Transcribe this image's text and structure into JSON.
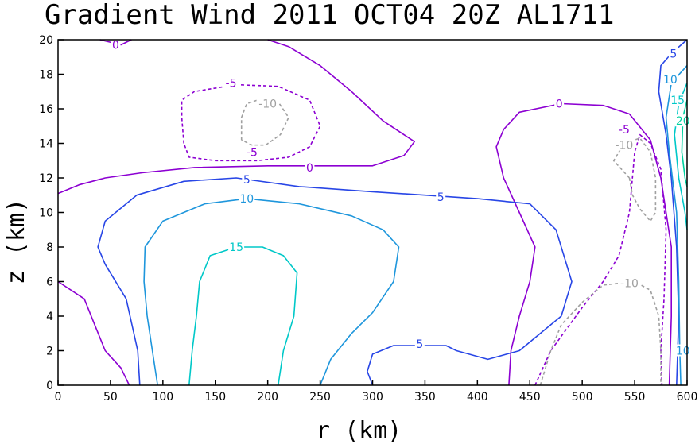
{
  "chart_data": {
    "type": "contour",
    "title": "Gradient Wind 2011 OCT04 20Z  AL1711",
    "xlabel": "r (km)",
    "ylabel": "z (km)",
    "xlim": [
      0,
      600
    ],
    "ylim": [
      0,
      20
    ],
    "xticks": [
      0,
      50,
      100,
      150,
      200,
      250,
      300,
      350,
      400,
      450,
      500,
      550,
      600
    ],
    "yticks": [
      0,
      2,
      4,
      6,
      8,
      10,
      12,
      14,
      16,
      18,
      20
    ],
    "grid": false,
    "colors": {
      "-10": "#a0a0a0",
      "-5": "#8c00d2",
      "0": "#8c00d2",
      "5": "#2846e6",
      "10": "#1e96dc",
      "15": "#00c8c8",
      "20": "#00d2a0"
    },
    "contours": [
      {
        "level": 0,
        "style": "solid",
        "points": [
          [
            0,
            11.1
          ],
          [
            20,
            11.6
          ],
          [
            45,
            12.0
          ],
          [
            80,
            12.3
          ],
          [
            130,
            12.6
          ],
          [
            200,
            12.7
          ],
          [
            300,
            12.7
          ],
          [
            330,
            13.3
          ],
          [
            340,
            14.1
          ],
          [
            310,
            15.3
          ],
          [
            280,
            17.0
          ],
          [
            250,
            18.5
          ],
          [
            220,
            19.6
          ],
          [
            200,
            20
          ]
        ]
      },
      {
        "level": 0,
        "style": "solid",
        "points": [
          [
            40,
            20
          ],
          [
            60,
            19.7
          ],
          [
            70,
            20
          ]
        ]
      },
      {
        "level": 0,
        "style": "solid",
        "points": [
          [
            0,
            6.0
          ],
          [
            25,
            5.0
          ],
          [
            35,
            3.5
          ],
          [
            45,
            2.0
          ],
          [
            60,
            1.0
          ],
          [
            68,
            0
          ]
        ]
      },
      {
        "level": 0,
        "style": "solid",
        "points": [
          [
            430,
            0
          ],
          [
            432,
            2.0
          ],
          [
            440,
            4.0
          ],
          [
            450,
            6.0
          ],
          [
            455,
            8.0
          ],
          [
            440,
            10.0
          ],
          [
            425,
            12.0
          ],
          [
            418,
            13.8
          ],
          [
            425,
            14.8
          ],
          [
            440,
            15.8
          ],
          [
            480,
            16.3
          ],
          [
            520,
            16.2
          ],
          [
            545,
            15.7
          ],
          [
            565,
            14.2
          ],
          [
            575,
            12.0
          ],
          [
            585,
            8.0
          ],
          [
            585,
            4.0
          ],
          [
            583,
            0
          ]
        ]
      },
      {
        "level": 5,
        "style": "solid",
        "points": [
          [
            600,
            20
          ],
          [
            585,
            19.2
          ],
          [
            575,
            18.5
          ],
          [
            573,
            17.0
          ],
          [
            580,
            14.5
          ],
          [
            585,
            12.0
          ],
          [
            590,
            8.0
          ],
          [
            592,
            4.0
          ],
          [
            590,
            0
          ]
        ]
      },
      {
        "level": 5,
        "style": "solid",
        "points": [
          [
            78,
            0
          ],
          [
            76,
            2.0
          ],
          [
            65,
            5.0
          ],
          [
            45,
            7.0
          ],
          [
            38,
            8.0
          ],
          [
            45,
            9.5
          ],
          [
            75,
            11.0
          ],
          [
            120,
            11.8
          ],
          [
            170,
            12.0
          ],
          [
            230,
            11.5
          ],
          [
            300,
            11.2
          ],
          [
            350,
            11.0
          ],
          [
            400,
            10.8
          ],
          [
            450,
            10.5
          ],
          [
            475,
            9.0
          ],
          [
            490,
            6.0
          ],
          [
            480,
            4.0
          ],
          [
            440,
            2.0
          ],
          [
            410,
            1.5
          ],
          [
            380,
            2.0
          ],
          [
            370,
            2.3
          ],
          [
            320,
            2.3
          ],
          [
            300,
            1.8
          ],
          [
            295,
            0.8
          ],
          [
            300,
            0
          ]
        ]
      },
      {
        "level": 10,
        "style": "solid",
        "points": [
          [
            95,
            0
          ],
          [
            90,
            2.0
          ],
          [
            85,
            4.0
          ],
          [
            82,
            6.0
          ],
          [
            83,
            8.0
          ],
          [
            100,
            9.5
          ],
          [
            140,
            10.5
          ],
          [
            180,
            10.8
          ],
          [
            230,
            10.5
          ],
          [
            280,
            9.8
          ],
          [
            310,
            9.0
          ],
          [
            325,
            8.0
          ],
          [
            320,
            6.0
          ],
          [
            300,
            4.2
          ],
          [
            280,
            3.0
          ],
          [
            260,
            1.5
          ],
          [
            250,
            0
          ]
        ]
      },
      {
        "level": 10,
        "style": "solid",
        "points": [
          [
            600,
            18.5
          ],
          [
            585,
            17.5
          ],
          [
            580,
            15.5
          ],
          [
            583,
            13.5
          ],
          [
            590,
            10.0
          ],
          [
            592,
            6.0
          ],
          [
            593,
            2.0
          ],
          [
            594,
            0
          ]
        ]
      },
      {
        "level": 15,
        "style": "solid",
        "points": [
          [
            125,
            0
          ],
          [
            128,
            2.0
          ],
          [
            132,
            4.0
          ],
          [
            135,
            6.0
          ],
          [
            145,
            7.5
          ],
          [
            170,
            8.0
          ],
          [
            195,
            8.0
          ],
          [
            215,
            7.5
          ],
          [
            228,
            6.5
          ],
          [
            225,
            4.0
          ],
          [
            215,
            2.0
          ],
          [
            210,
            0
          ]
        ]
      },
      {
        "level": 15,
        "style": "solid",
        "points": [
          [
            600,
            17.5
          ],
          [
            592,
            16.3
          ],
          [
            588,
            14.5
          ],
          [
            592,
            12.0
          ],
          [
            598,
            10.0
          ],
          [
            600,
            9.0
          ]
        ]
      },
      {
        "level": 20,
        "style": "solid",
        "points": [
          [
            600,
            16.5
          ],
          [
            596,
            15.5
          ],
          [
            595,
            13.5
          ],
          [
            598,
            12.0
          ],
          [
            600,
            11.5
          ]
        ]
      },
      {
        "level": -5,
        "style": "dashed",
        "points": [
          [
            120,
            14.0
          ],
          [
            118,
            15.5
          ],
          [
            118,
            16.5
          ],
          [
            130,
            17.0
          ],
          [
            170,
            17.4
          ],
          [
            210,
            17.3
          ],
          [
            240,
            16.5
          ],
          [
            250,
            15.0
          ],
          [
            240,
            13.8
          ],
          [
            220,
            13.2
          ],
          [
            190,
            13.0
          ],
          [
            150,
            13.0
          ],
          [
            125,
            13.2
          ],
          [
            120,
            14.0
          ]
        ]
      },
      {
        "level": -5,
        "style": "dashed",
        "points": [
          [
            455,
            0
          ],
          [
            470,
            2.0
          ],
          [
            500,
            4.5
          ],
          [
            520,
            6.0
          ],
          [
            535,
            7.5
          ],
          [
            545,
            10.0
          ],
          [
            550,
            13.5
          ],
          [
            555,
            14.5
          ],
          [
            565,
            14.0
          ],
          [
            575,
            12.5
          ],
          [
            580,
            9.0
          ],
          [
            578,
            5.0
          ],
          [
            575,
            2.0
          ],
          [
            576,
            0
          ]
        ]
      },
      {
        "level": -10,
        "style": "dashed",
        "points": [
          [
            175,
            14.2
          ],
          [
            175,
            15.5
          ],
          [
            180,
            16.3
          ],
          [
            195,
            16.6
          ],
          [
            210,
            16.4
          ],
          [
            220,
            15.5
          ],
          [
            212,
            14.5
          ],
          [
            198,
            13.9
          ],
          [
            185,
            13.9
          ],
          [
            175,
            14.2
          ]
        ]
      },
      {
        "level": -10,
        "style": "dashed",
        "points": [
          [
            545,
            12.0
          ],
          [
            548,
            11.0
          ],
          [
            555,
            10.2
          ],
          [
            565,
            9.5
          ],
          [
            570,
            10.0
          ],
          [
            570,
            12.0
          ],
          [
            565,
            13.5
          ],
          [
            555,
            14.3
          ],
          [
            540,
            14.0
          ],
          [
            530,
            13.0
          ],
          [
            545,
            12.0
          ]
        ]
      },
      {
        "level": -10,
        "style": "dashed",
        "points": [
          [
            460,
            0
          ],
          [
            470,
            2.0
          ],
          [
            480,
            3.5
          ],
          [
            500,
            4.8
          ],
          [
            520,
            5.8
          ],
          [
            550,
            6.0
          ],
          [
            565,
            5.5
          ],
          [
            573,
            4.0
          ],
          [
            575,
            2.0
          ],
          [
            575,
            0
          ]
        ]
      }
    ],
    "contour_labels": [
      {
        "text": "0",
        "x": 55,
        "y": 19.7,
        "level": 0
      },
      {
        "text": "-5",
        "x": 165,
        "y": 17.5,
        "level": -5
      },
      {
        "text": "-10",
        "x": 200,
        "y": 16.3,
        "level": -10
      },
      {
        "text": "-5",
        "x": 185,
        "y": 13.5,
        "level": -5
      },
      {
        "text": "0",
        "x": 240,
        "y": 12.6,
        "level": 0
      },
      {
        "text": "5",
        "x": 180,
        "y": 11.9,
        "level": 5
      },
      {
        "text": "5",
        "x": 365,
        "y": 10.9,
        "level": 5
      },
      {
        "text": "10",
        "x": 180,
        "y": 10.8,
        "level": 10
      },
      {
        "text": "15",
        "x": 170,
        "y": 8.0,
        "level": 15
      },
      {
        "text": "5",
        "x": 345,
        "y": 2.4,
        "level": 5
      },
      {
        "text": "0",
        "x": 478,
        "y": 16.3,
        "level": 0
      },
      {
        "text": "-5",
        "x": 540,
        "y": 14.8,
        "level": -5
      },
      {
        "text": "-10",
        "x": 540,
        "y": 13.9,
        "level": -10
      },
      {
        "text": "-10",
        "x": 545,
        "y": 5.9,
        "level": -10
      },
      {
        "text": "5",
        "x": 587,
        "y": 19.2,
        "level": 5
      },
      {
        "text": "10",
        "x": 584,
        "y": 17.7,
        "level": 10
      },
      {
        "text": "15",
        "x": 591,
        "y": 16.5,
        "level": 15
      },
      {
        "text": "20",
        "x": 596,
        "y": 15.3,
        "level": 20
      },
      {
        "text": "10",
        "x": 596,
        "y": 2.0,
        "level": 10
      }
    ]
  }
}
